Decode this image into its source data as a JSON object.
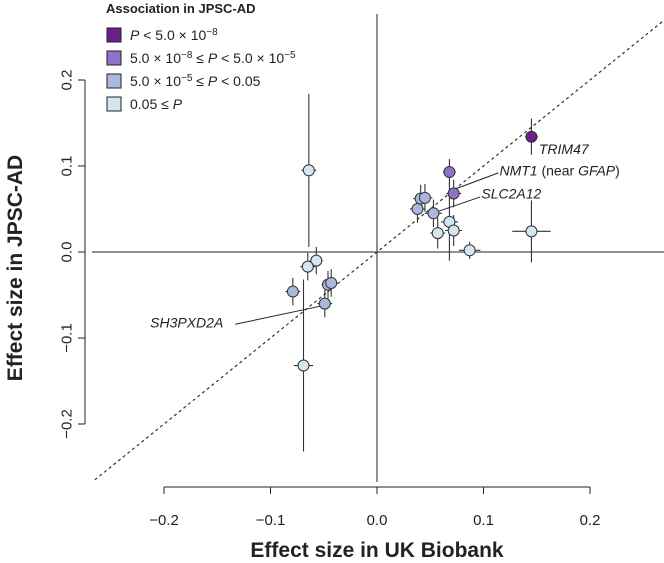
{
  "chart_data": {
    "type": "scatter",
    "xlabel": "Effect size in UK Biobank",
    "ylabel": "Effect size in JPSC-AD",
    "xlim": [
      -0.2,
      0.2
    ],
    "ylim": [
      -0.2,
      0.2
    ],
    "xticks": [
      "−0.2",
      "−0.1",
      "0.0",
      "0.1",
      "0.2"
    ],
    "yticks": [
      "−0.2",
      "−0.1",
      "0.0",
      "0.1",
      "0.2"
    ],
    "reference_lines": [
      "x = 0",
      "y = 0",
      "y = x (dotted)"
    ],
    "legend": {
      "title": "Association in JPSC-AD",
      "entries": [
        {
          "key": "c1",
          "color": "#6a1f8a",
          "parts": [
            {
              "t": "P",
              "i": true
            },
            {
              "t": " < 5.0 × 10"
            },
            {
              "t": "−8",
              "s": true
            }
          ]
        },
        {
          "key": "c2",
          "color": "#8e73c8",
          "parts": [
            {
              "t": "5.0 × 10"
            },
            {
              "t": "−8",
              "s": true
            },
            {
              "t": " ≤ "
            },
            {
              "t": "P",
              "i": true
            },
            {
              "t": " < 5.0 × 10"
            },
            {
              "t": "−5",
              "s": true
            }
          ]
        },
        {
          "key": "c3",
          "color": "#aab8dd",
          "parts": [
            {
              "t": "5.0 × 10"
            },
            {
              "t": "−5",
              "s": true
            },
            {
              "t": " ≤ "
            },
            {
              "t": "P",
              "i": true
            },
            {
              "t": " < 0.05"
            }
          ]
        },
        {
          "key": "c4",
          "color": "#d4e6f1",
          "parts": [
            {
              "t": "0.05 ≤ "
            },
            {
              "t": "P",
              "i": true
            }
          ]
        }
      ]
    },
    "points": [
      {
        "x": 0.145,
        "y": 0.134,
        "xerr": 0.006,
        "yerr": 0.021,
        "cat": "c1",
        "label": "TRIM47"
      },
      {
        "x": 0.068,
        "y": 0.093,
        "xerr": 0.006,
        "yerr": 0.015,
        "cat": "c2"
      },
      {
        "x": 0.072,
        "y": 0.068,
        "xerr": 0.007,
        "yerr": 0.016,
        "cat": "c2",
        "label": "NMT1"
      },
      {
        "x": 0.041,
        "y": 0.062,
        "xerr": 0.007,
        "yerr": 0.016,
        "cat": "c3"
      },
      {
        "x": 0.045,
        "y": 0.063,
        "xerr": 0.007,
        "yerr": 0.016,
        "cat": "c3"
      },
      {
        "x": 0.038,
        "y": 0.05,
        "xerr": 0.007,
        "yerr": 0.016,
        "cat": "c3"
      },
      {
        "x": 0.053,
        "y": 0.045,
        "xerr": 0.008,
        "yerr": 0.016,
        "cat": "c3",
        "label": "SLC2A12"
      },
      {
        "x": 0.057,
        "y": 0.022,
        "xerr": 0.007,
        "yerr": 0.018,
        "cat": "c4"
      },
      {
        "x": 0.068,
        "y": 0.035,
        "xerr": 0.008,
        "yerr": 0.045,
        "cat": "c4"
      },
      {
        "x": 0.072,
        "y": 0.025,
        "xerr": 0.008,
        "yerr": 0.018,
        "cat": "c4"
      },
      {
        "x": 0.087,
        "y": 0.002,
        "xerr": 0.01,
        "yerr": 0.01,
        "cat": "c4"
      },
      {
        "x": 0.145,
        "y": 0.024,
        "xerr": 0.018,
        "yerr": 0.036,
        "cat": "c4"
      },
      {
        "x": -0.064,
        "y": 0.095,
        "xerr": 0.007,
        "yerr": 0.089,
        "cat": "c4"
      },
      {
        "x": -0.057,
        "y": -0.01,
        "xerr": 0.006,
        "yerr": 0.016,
        "cat": "c4"
      },
      {
        "x": -0.065,
        "y": -0.017,
        "xerr": 0.007,
        "yerr": 0.016,
        "cat": "c4"
      },
      {
        "x": -0.079,
        "y": -0.046,
        "xerr": 0.007,
        "yerr": 0.016,
        "cat": "c3"
      },
      {
        "x": -0.046,
        "y": -0.038,
        "xerr": 0.006,
        "yerr": 0.016,
        "cat": "c3"
      },
      {
        "x": -0.043,
        "y": -0.036,
        "xerr": 0.006,
        "yerr": 0.016,
        "cat": "c3"
      },
      {
        "x": -0.049,
        "y": -0.06,
        "xerr": 0.007,
        "yerr": 0.016,
        "cat": "c3",
        "label": "SH3PXD2A"
      },
      {
        "x": -0.069,
        "y": -0.132,
        "xerr": 0.009,
        "yerr": 0.1,
        "cat": "c4"
      }
    ],
    "annotations": [
      {
        "key": "TRIM47",
        "x": 0.152,
        "y": 0.12,
        "anchor": "start",
        "parts": [
          {
            "t": "TRIM47",
            "i": true
          }
        ]
      },
      {
        "key": "NMT1",
        "x": 0.115,
        "y": 0.095,
        "anchor": "start",
        "parts": [
          {
            "t": "NMT1",
            "i": true
          },
          {
            "t": " (near "
          },
          {
            "t": "GFAP",
            "i": true
          },
          {
            "t": ")"
          }
        ]
      },
      {
        "key": "SLC2A12",
        "x": 0.098,
        "y": 0.068,
        "anchor": "start",
        "parts": [
          {
            "t": "SLC2A12",
            "i": true
          }
        ]
      },
      {
        "key": "SH3PXD2A",
        "x": -0.213,
        "y": -0.082,
        "anchor": "start",
        "parts": [
          {
            "t": "SH3PXD2A",
            "i": true
          }
        ]
      }
    ],
    "leaders": [
      {
        "from": [
          0.075,
          0.074
        ],
        "to": [
          0.114,
          0.092
        ]
      },
      {
        "from": [
          0.057,
          0.047
        ],
        "to": [
          0.097,
          0.064
        ]
      },
      {
        "from": [
          -0.053,
          -0.063
        ],
        "to": [
          -0.133,
          -0.084
        ]
      }
    ]
  }
}
